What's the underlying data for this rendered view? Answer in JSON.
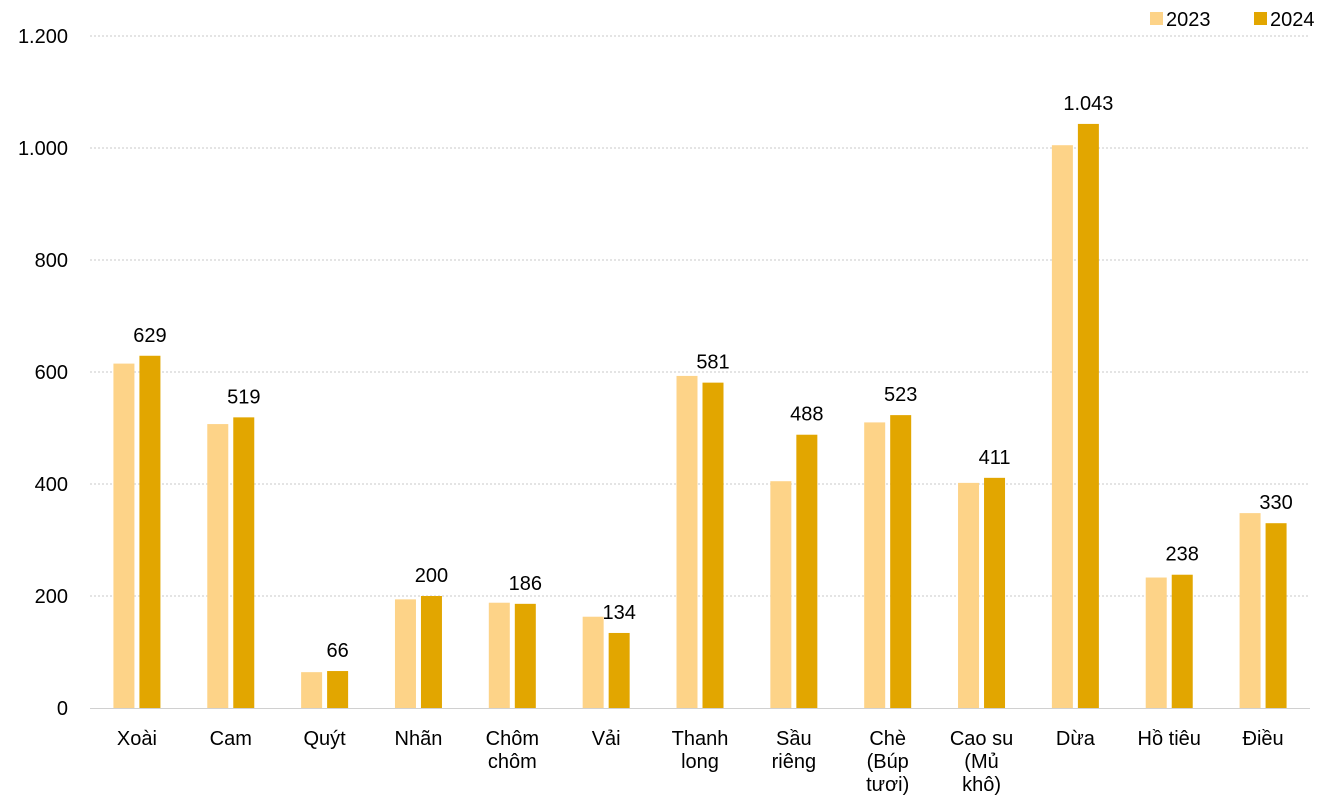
{
  "chart_data": {
    "type": "bar",
    "categories": [
      [
        "Xoài"
      ],
      [
        "Cam"
      ],
      [
        "Quýt"
      ],
      [
        "Nhãn"
      ],
      [
        "Chôm",
        "chôm"
      ],
      [
        "Vải"
      ],
      [
        "Thanh",
        "long"
      ],
      [
        "Sầu",
        "riêng"
      ],
      [
        "Chè",
        "(Búp",
        "tươi)"
      ],
      [
        "Cao su",
        "(Mủ",
        "khô)"
      ],
      [
        "Dừa"
      ],
      [
        "Hồ tiêu"
      ],
      [
        "Điều"
      ]
    ],
    "series": [
      {
        "name": "2023",
        "color": "#FDD388",
        "values": [
          615,
          507,
          64,
          194,
          188,
          163,
          593,
          405,
          510,
          402,
          1005,
          233,
          348
        ]
      },
      {
        "name": "2024",
        "color": "#E2A600",
        "values": [
          629,
          519,
          66,
          200,
          186,
          134,
          581,
          488,
          523,
          411,
          1043,
          238,
          330
        ],
        "labels": [
          "629",
          "519",
          "66",
          "200",
          "186",
          "134",
          "581",
          "488",
          "523",
          "411",
          "1.043",
          "238",
          "330"
        ]
      }
    ],
    "ylim": [
      0,
      1200
    ],
    "yticks": [
      0,
      200,
      400,
      600,
      800,
      1000,
      1200
    ],
    "ytick_labels": [
      "0",
      "200",
      "400",
      "600",
      "800",
      "1.000",
      "1.200"
    ],
    "grid": true,
    "legend_position": "top-right"
  }
}
